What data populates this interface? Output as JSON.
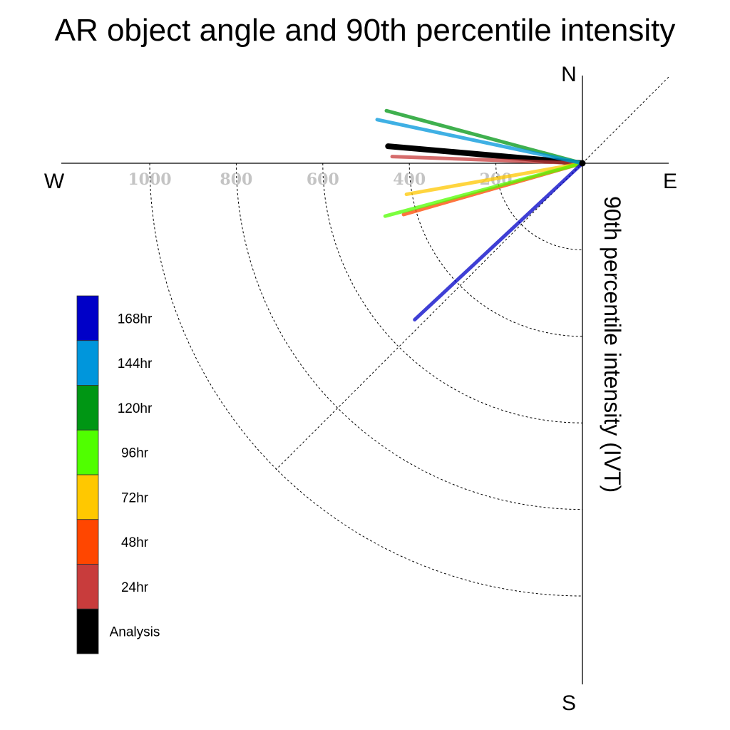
{
  "chart_data": {
    "type": "polar-vector",
    "title": "AR object angle and 90th percentile intensity",
    "ylabel": "90th percentile intensity (IVT)",
    "directions": {
      "north": "N",
      "south": "S",
      "east": "E",
      "west": "W"
    },
    "radial_ticks": [
      200,
      400,
      600,
      800,
      1000
    ],
    "rlim": [
      0,
      1200
    ],
    "grid": true,
    "legend_position": "lower-left",
    "series": [
      {
        "name": "168hr",
        "color": "#0000c8",
        "magnitude": 530,
        "direction_deg": 227
      },
      {
        "name": "144hr",
        "color": "#0096dc",
        "magnitude": 485,
        "direction_deg": 282
      },
      {
        "name": "120hr",
        "color": "#009614",
        "magnitude": 469,
        "direction_deg": 285
      },
      {
        "name": "96hr",
        "color": "#50ff00",
        "magnitude": 472,
        "direction_deg": 255
      },
      {
        "name": "72hr",
        "color": "#ffc800",
        "magnitude": 413,
        "direction_deg": 260
      },
      {
        "name": "48hr",
        "color": "#ff4600",
        "magnitude": 430,
        "direction_deg": 254
      },
      {
        "name": "24hr",
        "color": "#c83c3c",
        "magnitude": 440,
        "direction_deg": 272
      },
      {
        "name": "Analysis",
        "color": "#000000",
        "magnitude": 451,
        "direction_deg": 275
      }
    ]
  }
}
